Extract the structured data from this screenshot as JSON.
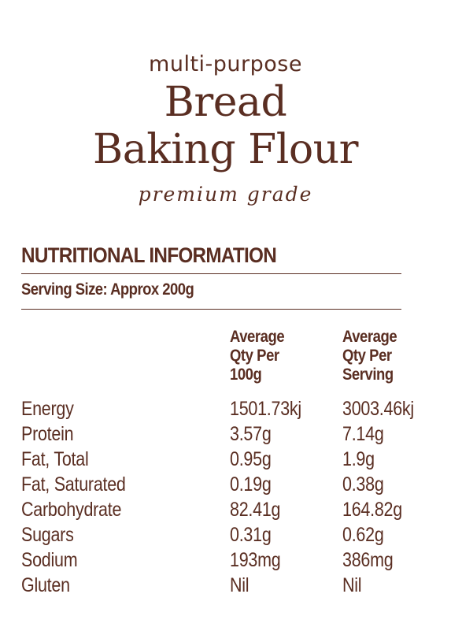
{
  "brand": {
    "subtitle": "multi-purpose",
    "title_line1": "Bread",
    "title_line2": "Baking Flour",
    "grade": "premium grade"
  },
  "panel": {
    "heading": "NUTRITIONAL INFORMATION",
    "serving_size": "Serving Size: Approx 200g",
    "columns": {
      "per100": [
        "Average",
        "Qty Per",
        "100g"
      ],
      "perServing": [
        "Average",
        "Qty Per",
        "Serving"
      ]
    },
    "rows": [
      {
        "name": "Energy",
        "per100": "1501.73kj",
        "perServing": "3003.46kj"
      },
      {
        "name": "Protein",
        "per100": "3.57g",
        "perServing": "7.14g"
      },
      {
        "name": "Fat, Total",
        "per100": "0.95g",
        "perServing": "1.9g"
      },
      {
        "name": "Fat, Saturated",
        "per100": "0.19g",
        "perServing": "0.38g"
      },
      {
        "name": "Carbohydrate",
        "per100": "82.41g",
        "perServing": "164.82g"
      },
      {
        "name": "Sugars",
        "per100": "0.31g",
        "perServing": "0.62g"
      },
      {
        "name": "Sodium",
        "per100": "193mg",
        "perServing": "386mg"
      },
      {
        "name": "Gluten",
        "per100": "Nil",
        "perServing": "Nil"
      }
    ]
  },
  "colors": {
    "text": "#5a2e22",
    "background": "#ffffff"
  }
}
